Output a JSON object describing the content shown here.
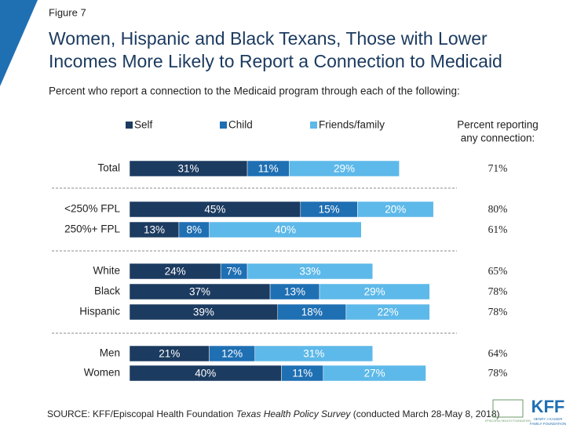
{
  "chart_data": {
    "type": "stacked-bar-horizontal",
    "figure_label": "Figure 7",
    "title": [
      "Women, Hispanic and Black Texans, Those with Lower",
      "Incomes More Likely to Report a Connection to Medicaid"
    ],
    "subtitle": "Percent who report a connection to the Medicaid program through each of the following:",
    "categories": [
      "Total",
      "<250% FPL",
      "250%+ FPL",
      "White",
      "Black",
      "Hispanic",
      "Men",
      "Women"
    ],
    "series": [
      {
        "name": "Self",
        "color": "#1c3b60",
        "values": [
          31,
          45,
          13,
          24,
          37,
          39,
          21,
          40
        ],
        "value_labels": [
          "31%",
          "45%",
          "13%",
          "24%",
          "37%",
          "39%",
          "21%",
          "40%"
        ]
      },
      {
        "name": "Child",
        "color": "#1f6fb3",
        "values": [
          11,
          15,
          8,
          7,
          13,
          18,
          12,
          11
        ],
        "value_labels": [
          "11%",
          "15%",
          "8%",
          "7%",
          "13%",
          "18%",
          "12%",
          "11%"
        ]
      },
      {
        "name": "Friends/family",
        "color": "#5db9e9",
        "values": [
          29,
          20,
          40,
          33,
          29,
          22,
          31,
          27
        ],
        "value_labels": [
          "29%",
          "20%",
          "40%",
          "33%",
          "29%",
          "22%",
          "31%",
          "27%"
        ]
      }
    ],
    "any_connection": {
      "header": [
        "Percent reporting",
        "any connection:"
      ],
      "values": [
        71,
        80,
        61,
        65,
        78,
        78,
        64,
        78
      ],
      "value_labels": [
        "71%",
        "80%",
        "61%",
        "65%",
        "78%",
        "78%",
        "64%",
        "78%"
      ]
    },
    "source": [
      "SOURCE: KFF/Episcopal Health Foundation ",
      "Texas Health Policy Survey",
      " (conducted March 28-May 8, 2018)"
    ],
    "logos": {
      "ehf": "EPISCOPAL HEALTH FOUNDATION",
      "kff": "KFF",
      "kff_sub": [
        "HENRY J KAISER",
        "FAMILY FOUNDATION"
      ]
    }
  }
}
